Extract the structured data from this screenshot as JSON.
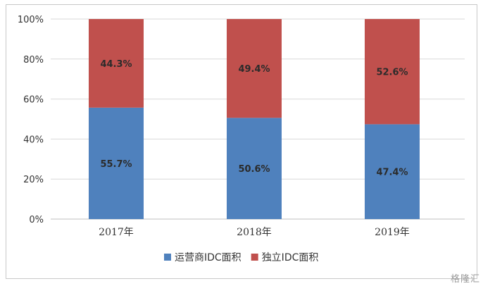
{
  "chart_data": {
    "type": "bar",
    "stacked": true,
    "percent_stacked": true,
    "categories": [
      "2017年",
      "2018年",
      "2019年"
    ],
    "series": [
      {
        "name": "运营商IDC面积",
        "values": [
          55.7,
          50.6,
          47.4
        ],
        "labels": [
          "55.7%",
          "50.6%",
          "47.4%"
        ],
        "color": "#4f81bd"
      },
      {
        "name": "独立IDC面积",
        "values": [
          44.3,
          49.4,
          52.6
        ],
        "labels": [
          "44.3%",
          "49.4%",
          "52.6%"
        ],
        "color": "#c0504d"
      }
    ],
    "ylim": [
      0,
      100
    ],
    "yticks": [
      "0%",
      "20%",
      "40%",
      "60%",
      "80%",
      "100%"
    ],
    "grid": true,
    "legend": "bottom"
  },
  "watermark": "格隆汇"
}
